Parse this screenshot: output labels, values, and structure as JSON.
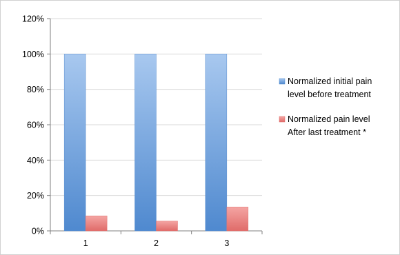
{
  "chart_data": {
    "type": "bar",
    "categories": [
      "1",
      "2",
      "3"
    ],
    "series": [
      {
        "name": "Normalized initial pain level before treatment",
        "values": [
          100,
          100,
          100
        ],
        "color": "#5b9bd5"
      },
      {
        "name": "Normalized pain level After last treatment *",
        "values": [
          8.5,
          5.5,
          13.5
        ],
        "color": "#f07a78"
      }
    ],
    "y_ticks": [
      "0%",
      "20%",
      "40%",
      "60%",
      "80%",
      "100%",
      "120%"
    ],
    "ylim": [
      0,
      120
    ],
    "grid": true,
    "legend_position": "right",
    "legend": [
      {
        "lines": [
          "Normalized initial pain",
          "level before treatment"
        ]
      },
      {
        "lines": [
          "Normalized pain level",
          "After last treatment *"
        ]
      }
    ],
    "title": "",
    "xlabel": "",
    "ylabel": ""
  }
}
